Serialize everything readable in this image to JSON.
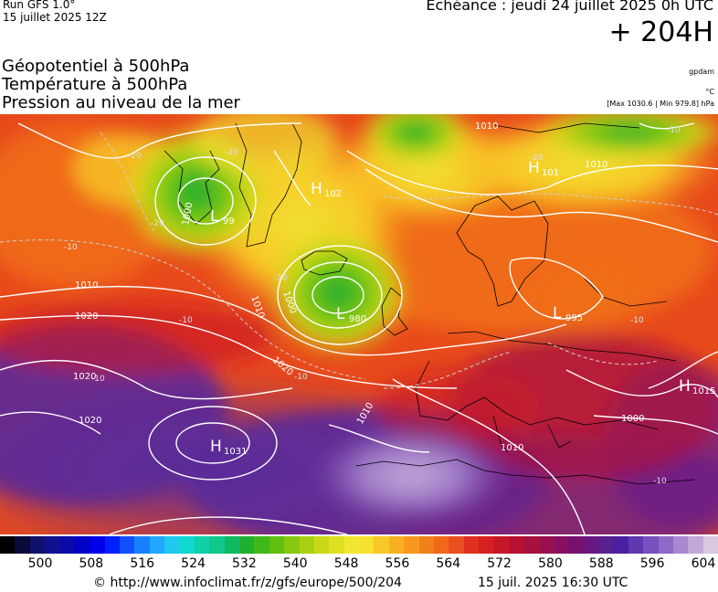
{
  "header": {
    "run": "Run GFS 1.0°",
    "run_date": "15 juillet 2025 12Z",
    "valid": "Echéance : jeudi 24 juillet 2025 0h UTC",
    "lead": "+ 204H"
  },
  "params": [
    {
      "label": "Géopotentiel à 500hPa",
      "unit": "gpdam"
    },
    {
      "label": "Température à 500hPa",
      "unit": "°C"
    },
    {
      "label": "Pression au niveau de la mer",
      "unit": "[Max 1030.6 | Min 979.8] hPa"
    }
  ],
  "pressure_systems": [
    {
      "type": "H",
      "value": "1031"
    },
    {
      "type": "H",
      "value": "1015"
    },
    {
      "type": "H",
      "value": "102"
    },
    {
      "type": "H",
      "value": "101"
    },
    {
      "type": "L",
      "value": "980"
    },
    {
      "type": "L",
      "value": "995"
    },
    {
      "type": "L",
      "value": "99"
    }
  ],
  "isobar_labels": [
    "1010",
    "1020",
    "1020",
    "1020",
    "1010",
    "1000",
    "1010",
    "1020",
    "1000",
    "1010",
    "1010",
    "1000",
    "1010"
  ],
  "temp_labels": [
    "-20",
    "-20",
    "-20",
    "-10",
    "-10",
    "-10",
    "-10",
    "-20",
    "-10",
    "-20",
    "-10",
    "-10"
  ],
  "colorbar": {
    "colors": [
      "#000000",
      "#0a0a3a",
      "#10106a",
      "#101090",
      "#0a0aa8",
      "#0000c8",
      "#0000e8",
      "#0020ff",
      "#1050ff",
      "#1880ff",
      "#20a8ff",
      "#20c8f0",
      "#10d8d0",
      "#10d0a8",
      "#10c888",
      "#10b860",
      "#20b030",
      "#40b818",
      "#60c010",
      "#88c810",
      "#a8d010",
      "#c8d818",
      "#e0e020",
      "#f0e830",
      "#f8e030",
      "#f8c828",
      "#f8b020",
      "#f89820",
      "#f08018",
      "#f06818",
      "#e85020",
      "#e03020",
      "#d82020",
      "#c81828",
      "#b81030",
      "#a81040",
      "#981050",
      "#881060",
      "#781070",
      "#6a1880",
      "#5a2090",
      "#4a20a0",
      "#6038b0",
      "#7850c0",
      "#9068c8",
      "#a888d0",
      "#c0a8d8",
      "#d8c8e0"
    ],
    "ticks": [
      "500",
      "508",
      "516",
      "524",
      "532",
      "540",
      "548",
      "556",
      "564",
      "572",
      "580",
      "588",
      "596",
      "604"
    ]
  },
  "footer": {
    "credit": "© http://www.infoclimat.fr/z/gfs/europe/500/204",
    "timestamp": "15 juil. 2025 16:30 UTC"
  }
}
